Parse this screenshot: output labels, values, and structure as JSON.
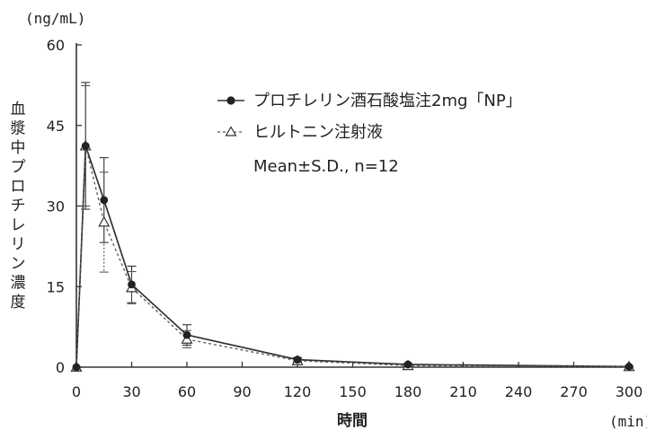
{
  "chart_data": {
    "type": "line",
    "title": "",
    "x": [
      0,
      5,
      15,
      30,
      60,
      120,
      180,
      300
    ],
    "xlabel": "時間",
    "xunit": "(min)",
    "ylabel": "血漿中プロチレリン濃度",
    "yunit": "(ng/mL)",
    "xlim": [
      0,
      300
    ],
    "ylim": [
      0,
      60
    ],
    "xticks": [
      "0",
      "30",
      "60",
      "90",
      "120",
      "150",
      "180",
      "210",
      "240",
      "270",
      "300"
    ],
    "yticks": [
      "0",
      "15",
      "30",
      "45",
      "60"
    ],
    "grid": false,
    "legend_position": "top-right",
    "series": [
      {
        "name": "プロチレリン酒石酸塩注2mg「NP」",
        "marker": "filled-circle",
        "line_style": "solid",
        "color": "#333333",
        "values": [
          0,
          41.2,
          31.1,
          15.4,
          6.0,
          1.4,
          0.5,
          0.1
        ],
        "sd": [
          0,
          11.8,
          7.9,
          3.4,
          1.9,
          0.4,
          0.2,
          0.1
        ]
      },
      {
        "name": "ヒルトニン注射液",
        "marker": "open-triangle",
        "line_style": "dashed",
        "color": "#555555",
        "values": [
          0,
          41.2,
          27.0,
          14.8,
          5.2,
          1.2,
          0.3,
          0.1
        ],
        "sd": [
          0,
          11.2,
          9.3,
          3.0,
          1.6,
          0.4,
          0.2,
          0.1
        ]
      }
    ],
    "annotation": "Mean±S.D., n=12"
  }
}
